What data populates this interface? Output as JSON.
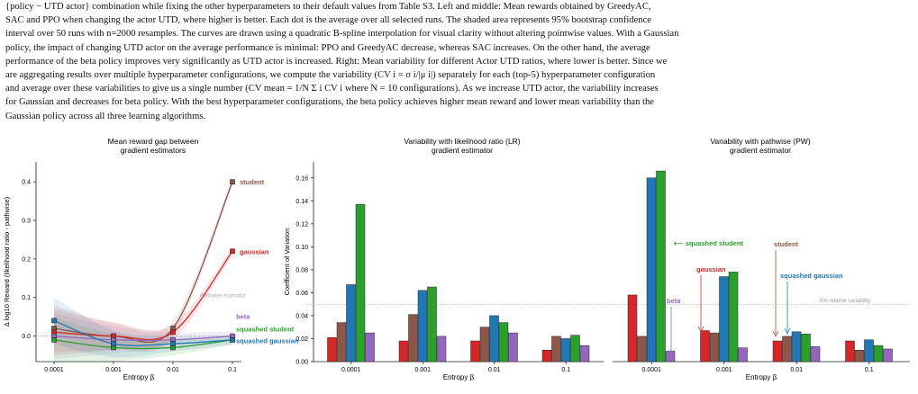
{
  "caption": {
    "lines": [
      "{policy − UTD actor} combination while fixing the other hyperparameters to their default values from Table S3. Left and middle: Mean rewards obtained by GreedyAC,",
      "SAC and PPO when changing the actor UTD, where higher is better. Each dot is the average over all selected runs. The shaded area represents 95% bootstrap confidence",
      "interval over 50 runs with n=2000 resamples. The curves are drawn using a quadratic B-spline interpolation for visual clarity without altering pointwise values. With a Gaussian",
      "policy, the impact of changing UTD actor on the average performance is minimal: PPO and GreedyAC decrease, whereas SAC increases. On the other hand, the average",
      "performance of the beta policy improves very significantly as UTD actor is increased. Right: Mean variability for different Actor UTD ratios, where lower is better. Since we",
      "are aggregating results over multiple hyperparameter configurations, we compute the variability (CV i = σ i/|μ i|) separately for each (top-5) hyperparameter configuration",
      "and average over these variabilities to give us a single number (CV mean = 1/N Σ i CV i where N = 10 configurations). As we increase UTD actor, the variability increases",
      "for Gaussian and decreases for beta policy. With the best hyperparameter configurations, the beta policy achieves higher mean reward and lower mean variability than the",
      "Gaussian policy across all three learning algorithms."
    ]
  },
  "colors": {
    "student": "#8c564b",
    "gaussian": "#d62728",
    "beta": "#9467bd",
    "squashed_student": "#2ca02c",
    "squashed_gaussian": "#1f77b4"
  },
  "left_chart": {
    "title_line1": "Mean reward gap between",
    "title_line2": "gradient estimators",
    "ylabel": "Δ log10 Reward (likelihood ratio - pathwise)",
    "xlabel": "Entropy β",
    "pathwise_label": "Pathwise estimator",
    "labels": {
      "student": "student",
      "gaussian": "gaussian",
      "beta": "beta",
      "squashed_student": "squashed student",
      "squashed_gaussian": "squashed gaussian"
    }
  },
  "mid_chart": {
    "title_line1": "Variability with likelihood ratio (LR)",
    "title_line2": "gradient estimator",
    "ylabel": "Coefficient of Variation",
    "xlabel": "Entropy β"
  },
  "right_chart": {
    "title_line1": "Variability with pathwise (PW)",
    "title_line2": "gradient estimator",
    "xlabel": "Entropy β",
    "threshold_label": "5% relative variability",
    "ann_squashed_student": "⟵ squashed student",
    "ann_gaussian": "gaussian",
    "ann_beta": "beta",
    "ann_student": "student",
    "ann_squashed_gaussian": "squashed gaussian"
  },
  "chart_data": [
    {
      "type": "line",
      "title": "Mean reward gap between gradient estimators",
      "xlabel": "Entropy β",
      "ylabel": "Δ log10 Reward (likelihood ratio - pathwise)",
      "x": [
        "0.0001",
        "0.001",
        "0.01",
        "0.1"
      ],
      "yticks": [
        "0.0",
        "0.1",
        "0.2",
        "0.3",
        "0.4"
      ],
      "ylim": [
        -0.05,
        0.44
      ],
      "series": [
        {
          "name": "student",
          "key": "student",
          "values": [
            0.02,
            0.0,
            0.02,
            0.4
          ]
        },
        {
          "name": "gaussian",
          "key": "gaussian",
          "values": [
            0.01,
            0.0,
            0.01,
            0.22
          ]
        },
        {
          "name": "beta",
          "key": "beta",
          "values": [
            0.0,
            -0.01,
            -0.01,
            0.0
          ]
        },
        {
          "name": "squashed student",
          "key": "squashed_student",
          "values": [
            -0.01,
            -0.03,
            -0.03,
            -0.01
          ]
        },
        {
          "name": "squashed gaussian",
          "key": "squashed_gaussian",
          "values": [
            0.04,
            -0.02,
            -0.02,
            -0.01
          ]
        }
      ]
    },
    {
      "type": "bar",
      "title": "Variability with likelihood ratio (LR) gradient estimator",
      "xlabel": "Entropy β",
      "ylabel": "Coefficient of Variation",
      "categories": [
        "0.0001",
        "0.001",
        "0.01",
        "0.1"
      ],
      "yticks": [
        "0.00",
        "0.02",
        "0.04",
        "0.06",
        "0.08",
        "0.10",
        "0.12",
        "0.14",
        "0.16"
      ],
      "ylim": [
        0,
        0.17
      ],
      "threshold": 0.05,
      "series": [
        {
          "key": "gaussian",
          "values": [
            0.021,
            0.018,
            0.018,
            0.01
          ]
        },
        {
          "key": "student",
          "values": [
            0.034,
            0.041,
            0.03,
            0.022
          ]
        },
        {
          "key": "squashed_gaussian",
          "values": [
            0.067,
            0.062,
            0.04,
            0.02
          ]
        },
        {
          "key": "squashed_student",
          "values": [
            0.137,
            0.065,
            0.034,
            0.023
          ]
        },
        {
          "key": "beta",
          "values": [
            0.025,
            0.022,
            0.025,
            0.014
          ]
        }
      ]
    },
    {
      "type": "bar",
      "title": "Variability with pathwise (PW) gradient estimator",
      "xlabel": "Entropy β",
      "categories": [
        "0.0001",
        "0.001",
        "0.01",
        "0.1"
      ],
      "ylim": [
        0,
        0.17
      ],
      "threshold": 0.05,
      "series": [
        {
          "key": "gaussian",
          "values": [
            0.058,
            0.027,
            0.018,
            0.018
          ]
        },
        {
          "key": "student",
          "values": [
            0.022,
            0.025,
            0.022,
            0.01
          ]
        },
        {
          "key": "squashed_gaussian",
          "values": [
            0.16,
            0.074,
            0.026,
            0.019
          ]
        },
        {
          "key": "squashed_student",
          "values": [
            0.166,
            0.078,
            0.024,
            0.014
          ]
        },
        {
          "key": "beta",
          "values": [
            0.009,
            0.012,
            0.013,
            0.011
          ]
        }
      ]
    }
  ]
}
